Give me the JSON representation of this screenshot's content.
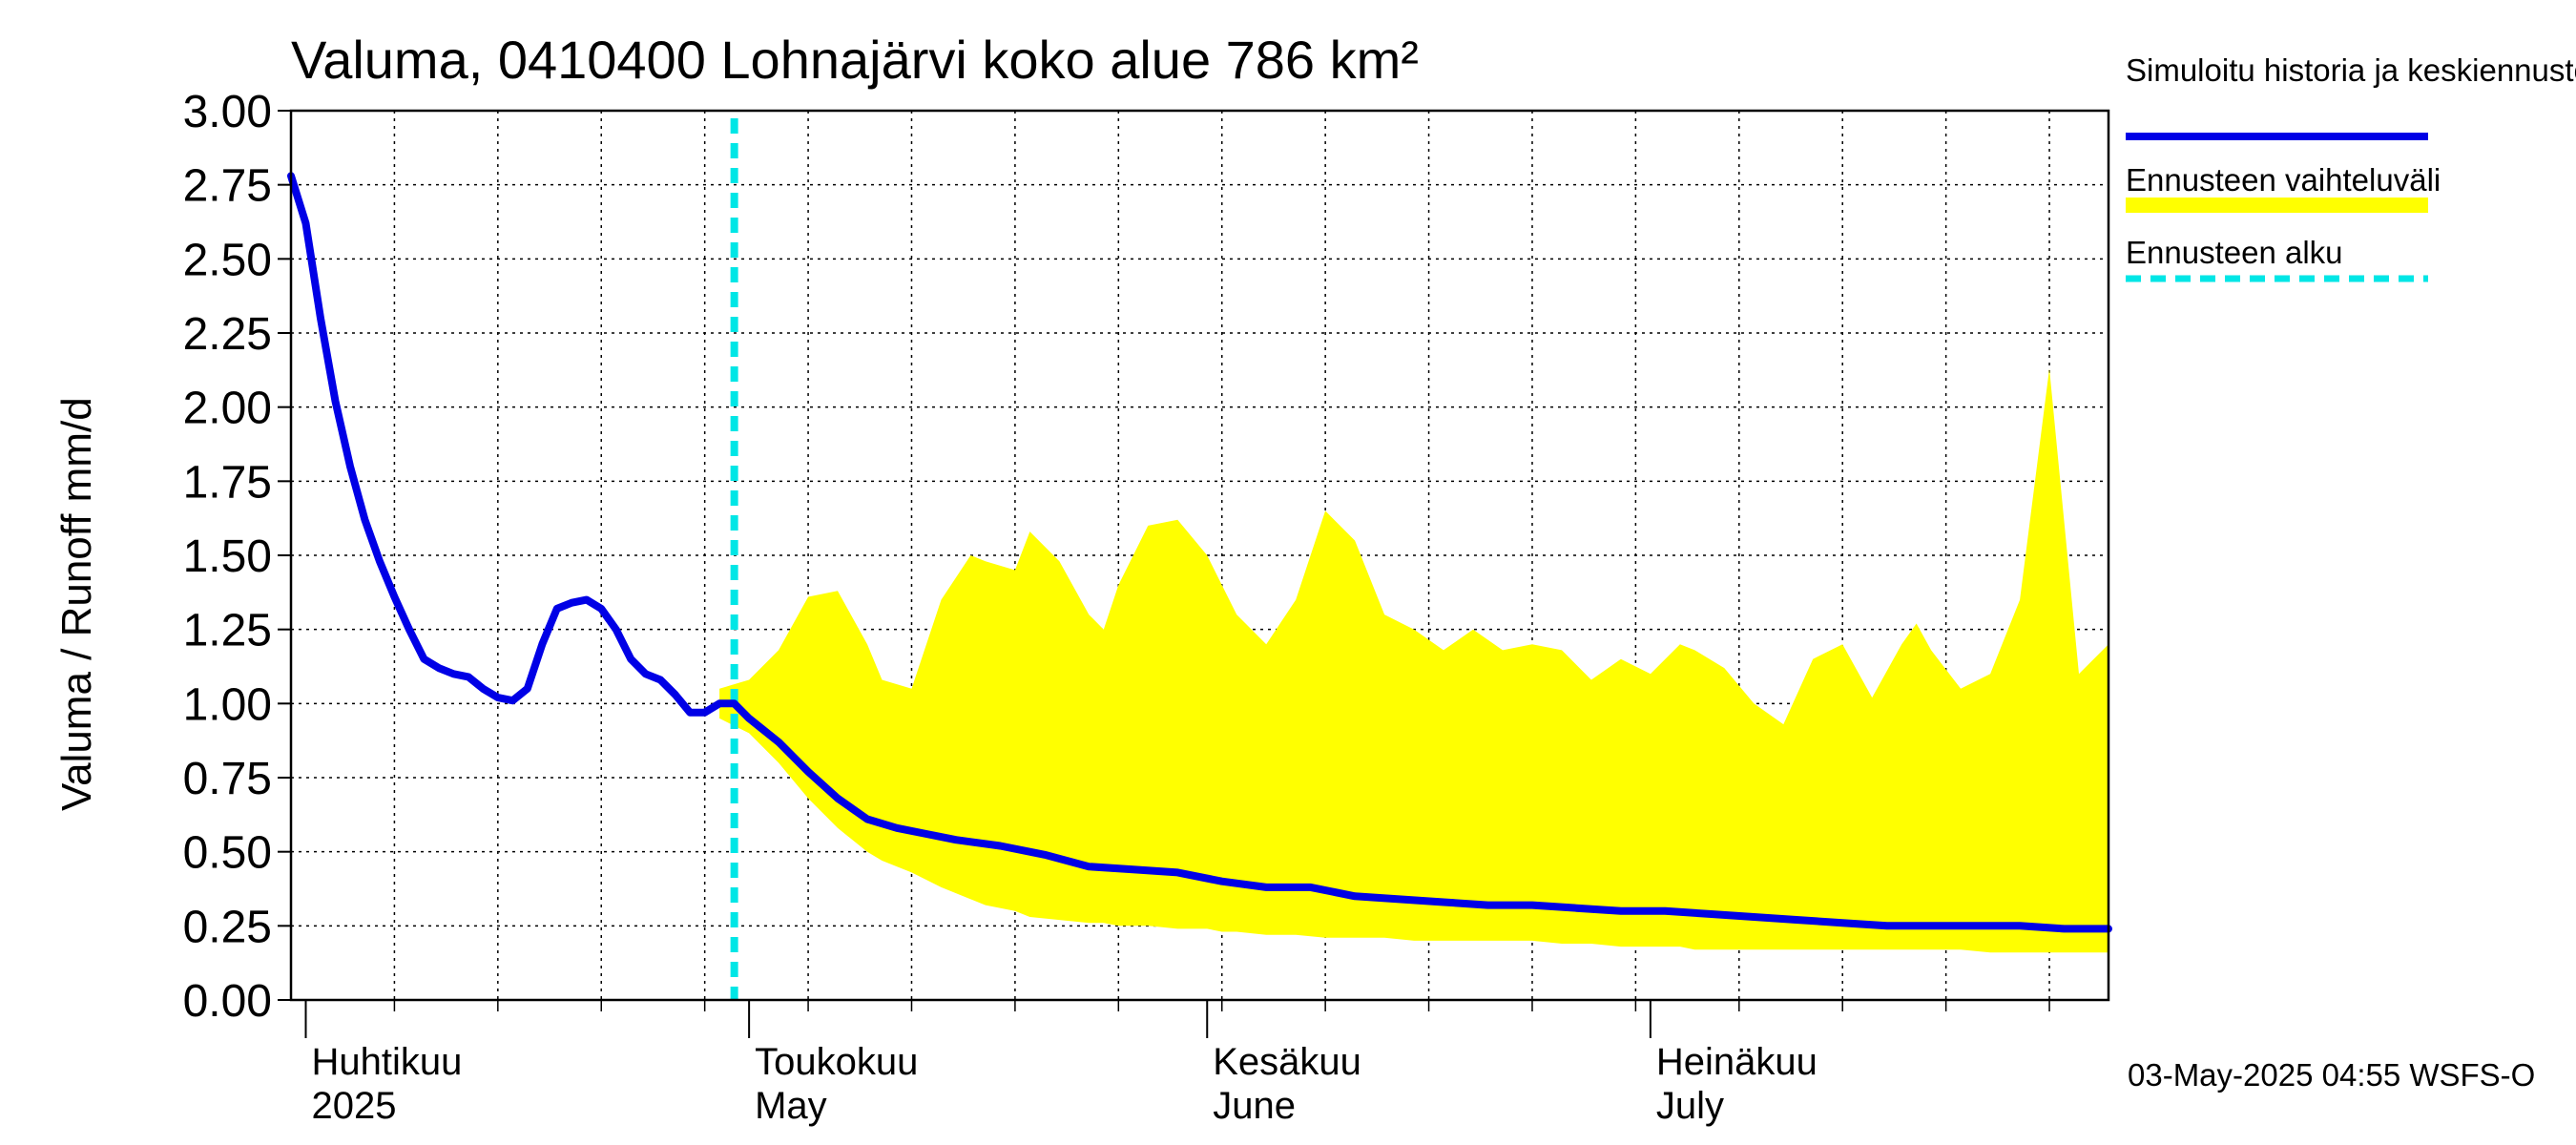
{
  "chart_data": {
    "type": "area",
    "title": "Valuma, 0410400 Lohnajärvi koko alue 786 km²",
    "ylabel": "Valuma / Runoff     mm/d",
    "ylim": [
      0,
      3
    ],
    "yticks": [
      "0.00",
      "0.25",
      "0.50",
      "0.75",
      "1.00",
      "1.25",
      "1.50",
      "1.75",
      "2.00",
      "2.25",
      "2.50",
      "2.75",
      "3.00"
    ],
    "xlim": [
      "2025-03-31",
      "2025-08-01"
    ],
    "grid": true,
    "legend_placement": "right",
    "month_ticks": [
      {
        "date": "2025-04-01",
        "fi": "Huhtikuu",
        "en": "2025"
      },
      {
        "date": "2025-05-01",
        "fi": "Toukokuu",
        "en": "May"
      },
      {
        "date": "2025-06-01",
        "fi": "Kesäkuu",
        "en": "June"
      },
      {
        "date": "2025-07-01",
        "fi": "Heinäkuu",
        "en": "July"
      }
    ],
    "forecast_start": "2025-04-30",
    "series": [
      {
        "name": "Simuloitu historia ja keskiennuste",
        "color": "#0000e6",
        "style": "line",
        "x": [
          "2025-03-31",
          "2025-04-01",
          "2025-04-02",
          "2025-04-03",
          "2025-04-04",
          "2025-04-05",
          "2025-04-06",
          "2025-04-07",
          "2025-04-08",
          "2025-04-09",
          "2025-04-10",
          "2025-04-11",
          "2025-04-12",
          "2025-04-13",
          "2025-04-14",
          "2025-04-15",
          "2025-04-16",
          "2025-04-17",
          "2025-04-18",
          "2025-04-19",
          "2025-04-20",
          "2025-04-21",
          "2025-04-22",
          "2025-04-23",
          "2025-04-24",
          "2025-04-25",
          "2025-04-26",
          "2025-04-27",
          "2025-04-28",
          "2025-04-29",
          "2025-04-30",
          "2025-05-01",
          "2025-05-03",
          "2025-05-05",
          "2025-05-07",
          "2025-05-09",
          "2025-05-11",
          "2025-05-13",
          "2025-05-15",
          "2025-05-18",
          "2025-05-21",
          "2025-05-24",
          "2025-05-27",
          "2025-05-30",
          "2025-06-02",
          "2025-06-05",
          "2025-06-08",
          "2025-06-11",
          "2025-06-14",
          "2025-06-17",
          "2025-06-20",
          "2025-06-23",
          "2025-06-26",
          "2025-06-29",
          "2025-07-02",
          "2025-07-05",
          "2025-07-08",
          "2025-07-11",
          "2025-07-14",
          "2025-07-17",
          "2025-07-20",
          "2025-07-23",
          "2025-07-26",
          "2025-07-29",
          "2025-08-01"
        ],
        "y": [
          2.78,
          2.62,
          2.3,
          2.02,
          1.8,
          1.62,
          1.48,
          1.36,
          1.25,
          1.15,
          1.12,
          1.1,
          1.09,
          1.05,
          1.02,
          1.01,
          1.05,
          1.2,
          1.32,
          1.34,
          1.35,
          1.32,
          1.25,
          1.15,
          1.1,
          1.08,
          1.03,
          0.97,
          0.97,
          1.0,
          1.0,
          0.95,
          0.87,
          0.77,
          0.68,
          0.61,
          0.58,
          0.56,
          0.54,
          0.52,
          0.49,
          0.45,
          0.44,
          0.43,
          0.4,
          0.38,
          0.38,
          0.35,
          0.34,
          0.33,
          0.32,
          0.32,
          0.31,
          0.3,
          0.3,
          0.29,
          0.28,
          0.27,
          0.26,
          0.25,
          0.25,
          0.25,
          0.25,
          0.24,
          0.24
        ]
      },
      {
        "name": "Ennusteen vaihteluväli",
        "color": "#ffff00",
        "style": "band",
        "x": [
          "2025-04-29",
          "2025-05-01",
          "2025-05-03",
          "2025-05-05",
          "2025-05-07",
          "2025-05-09",
          "2025-05-10",
          "2025-05-12",
          "2025-05-14",
          "2025-05-16",
          "2025-05-17",
          "2025-05-19",
          "2025-05-20",
          "2025-05-22",
          "2025-05-24",
          "2025-05-25",
          "2025-05-26",
          "2025-05-28",
          "2025-05-30",
          "2025-06-01",
          "2025-06-02",
          "2025-06-03",
          "2025-06-05",
          "2025-06-07",
          "2025-06-09",
          "2025-06-11",
          "2025-06-13",
          "2025-06-15",
          "2025-06-17",
          "2025-06-19",
          "2025-06-21",
          "2025-06-23",
          "2025-06-25",
          "2025-06-27",
          "2025-06-29",
          "2025-07-01",
          "2025-07-03",
          "2025-07-04",
          "2025-07-06",
          "2025-07-08",
          "2025-07-10",
          "2025-07-12",
          "2025-07-14",
          "2025-07-16",
          "2025-07-18",
          "2025-07-19",
          "2025-07-20",
          "2025-07-22",
          "2025-07-24",
          "2025-07-26",
          "2025-07-28",
          "2025-07-30",
          "2025-08-01"
        ],
        "low": [
          0.95,
          0.9,
          0.8,
          0.68,
          0.58,
          0.5,
          0.47,
          0.43,
          0.38,
          0.34,
          0.32,
          0.3,
          0.28,
          0.27,
          0.26,
          0.26,
          0.25,
          0.25,
          0.24,
          0.24,
          0.23,
          0.23,
          0.22,
          0.22,
          0.21,
          0.21,
          0.21,
          0.2,
          0.2,
          0.2,
          0.2,
          0.2,
          0.19,
          0.19,
          0.18,
          0.18,
          0.18,
          0.17,
          0.17,
          0.17,
          0.17,
          0.17,
          0.17,
          0.17,
          0.17,
          0.17,
          0.17,
          0.17,
          0.16,
          0.16,
          0.16,
          0.16,
          0.16
        ],
        "high": [
          1.05,
          1.08,
          1.18,
          1.36,
          1.38,
          1.2,
          1.08,
          1.05,
          1.35,
          1.5,
          1.48,
          1.45,
          1.58,
          1.48,
          1.3,
          1.25,
          1.4,
          1.6,
          1.62,
          1.5,
          1.4,
          1.3,
          1.2,
          1.35,
          1.65,
          1.55,
          1.3,
          1.25,
          1.18,
          1.25,
          1.18,
          1.2,
          1.18,
          1.08,
          1.15,
          1.1,
          1.2,
          1.18,
          1.12,
          1.0,
          0.93,
          1.15,
          1.2,
          1.02,
          1.2,
          1.27,
          1.18,
          1.05,
          1.1,
          1.35,
          2.13,
          1.1,
          1.2
        ]
      },
      {
        "name": "Ennusteen alku",
        "color": "#00e6e6",
        "style": "dashed-vertical"
      }
    ],
    "timestamp": "03-May-2025 04:55 WSFS-O"
  }
}
